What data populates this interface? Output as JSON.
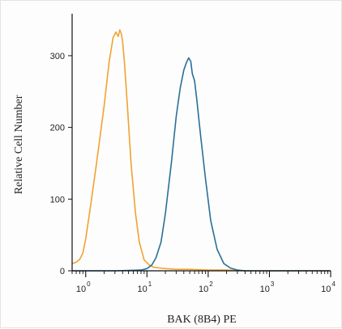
{
  "chart_data": {
    "type": "line",
    "title": "",
    "xlabel": "BAK (8B4) PE",
    "ylabel": "Relative Cell Number",
    "x_scale": "log",
    "xlim": [
      0.6,
      10000
    ],
    "ylim": [
      0,
      345
    ],
    "x_ticks": [
      {
        "value": 1,
        "base": "10",
        "exp": "0"
      },
      {
        "value": 10,
        "base": "10",
        "exp": "1"
      },
      {
        "value": 100,
        "base": "10",
        "exp": "2"
      },
      {
        "value": 1000,
        "base": "10",
        "exp": "3"
      },
      {
        "value": 10000,
        "base": "10",
        "exp": "4"
      }
    ],
    "y_ticks": [
      0,
      100,
      200,
      300
    ],
    "grid": false,
    "legend": "none",
    "series": [
      {
        "color": "#f0a232",
        "x": [
          0.6,
          0.7,
          0.8,
          0.9,
          1.0,
          1.2,
          1.5,
          2.0,
          2.4,
          2.8,
          3.1,
          3.4,
          3.6,
          3.8,
          4.0,
          4.3,
          4.8,
          5.5,
          6.5,
          7.5,
          9.0,
          11,
          13,
          16,
          20,
          30,
          50,
          100,
          200,
          400,
          1000,
          3000,
          10000
        ],
        "y": [
          10,
          12,
          16,
          25,
          45,
          90,
          150,
          230,
          290,
          325,
          333,
          327,
          336,
          331,
          320,
          290,
          230,
          150,
          80,
          40,
          15,
          8,
          5,
          4,
          3,
          2,
          2,
          1,
          1,
          0,
          0,
          0,
          0
        ]
      },
      {
        "color": "#2b6f98",
        "x": [
          0.6,
          3,
          8,
          10,
          12,
          14,
          17,
          20,
          25,
          30,
          35,
          40,
          44,
          48,
          52,
          55,
          60,
          65,
          75,
          90,
          110,
          140,
          180,
          230,
          300,
          400,
          1000,
          3000,
          10000
        ],
        "y": [
          0,
          0,
          1,
          3,
          8,
          18,
          40,
          80,
          150,
          215,
          255,
          280,
          290,
          297,
          292,
          275,
          265,
          240,
          190,
          130,
          70,
          30,
          10,
          4,
          1,
          0,
          0,
          0,
          0
        ]
      }
    ]
  }
}
